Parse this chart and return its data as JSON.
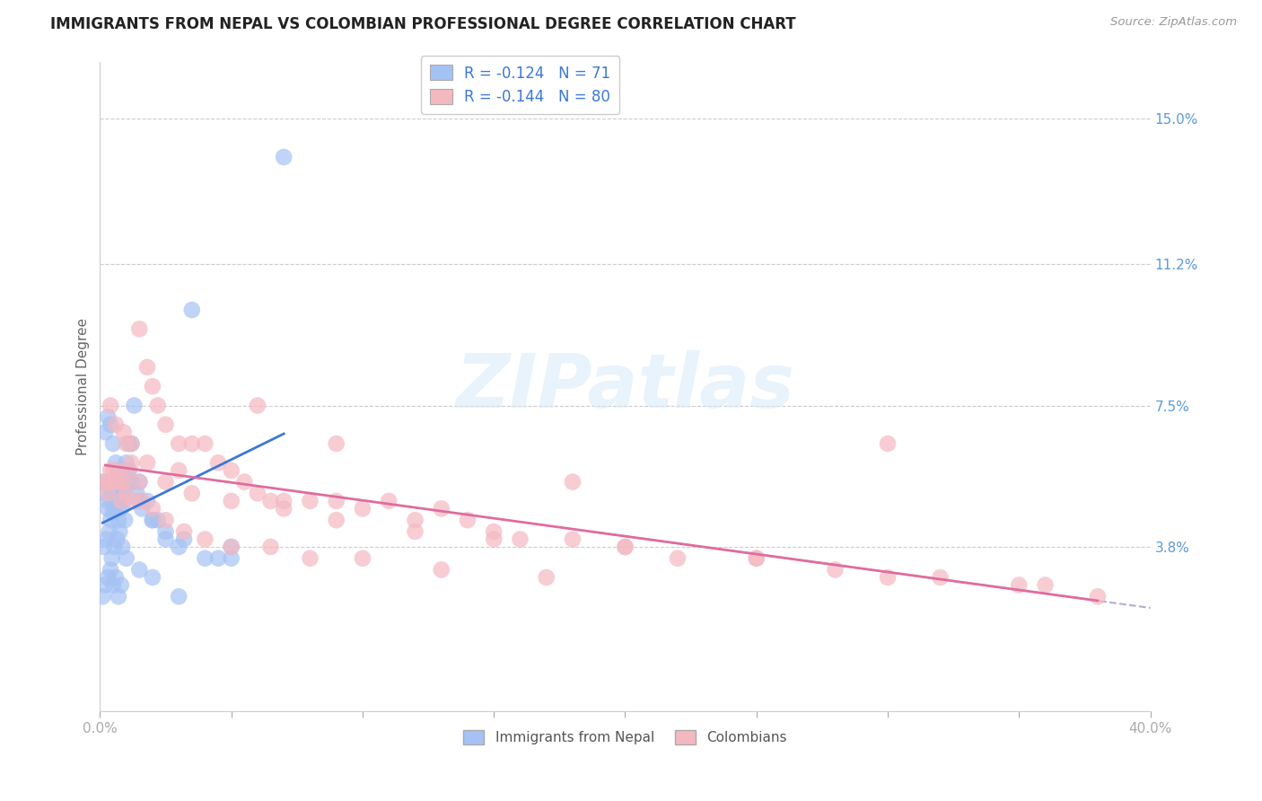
{
  "title": "IMMIGRANTS FROM NEPAL VS COLOMBIAN PROFESSIONAL DEGREE CORRELATION CHART",
  "source": "Source: ZipAtlas.com",
  "ylabel": "Professional Degree",
  "ytick_values": [
    3.8,
    7.5,
    11.2,
    15.0
  ],
  "xlim": [
    0.0,
    40.0
  ],
  "ylim": [
    -0.5,
    16.5
  ],
  "nepal_color": "#a4c2f4",
  "colombian_color": "#f4b8c1",
  "nepal_line_color": "#3c78d8",
  "colombian_line_color": "#e06c9f",
  "dashed_line_color": "#b0b0d0",
  "watermark_text": "ZIPatlas",
  "nepal_r": "-0.124",
  "nepal_n": "71",
  "colombian_r": "-0.144",
  "colombian_n": "80",
  "nepal_scatter_x": [
    0.1,
    0.2,
    0.3,
    0.3,
    0.4,
    0.4,
    0.5,
    0.5,
    0.5,
    0.6,
    0.6,
    0.7,
    0.7,
    0.8,
    0.8,
    0.9,
    1.0,
    1.0,
    1.1,
    1.2,
    1.3,
    1.5,
    1.5,
    1.8,
    2.0,
    2.2,
    2.5,
    3.0,
    4.0,
    5.0,
    0.15,
    0.25,
    0.35,
    0.45,
    0.55,
    0.65,
    0.75,
    0.85,
    0.95,
    1.1,
    0.2,
    0.3,
    0.4,
    0.5,
    0.6,
    0.7,
    0.8,
    0.9,
    1.0,
    1.2,
    1.4,
    1.6,
    2.0,
    2.5,
    3.2,
    4.5,
    0.1,
    0.2,
    0.3,
    0.4,
    0.5,
    0.6,
    0.7,
    0.8,
    1.0,
    1.5,
    2.0,
    3.0,
    5.0,
    7.0,
    3.5
  ],
  "nepal_scatter_y": [
    5.5,
    5.2,
    5.0,
    4.8,
    5.3,
    4.5,
    5.0,
    4.7,
    5.5,
    5.2,
    4.8,
    4.5,
    5.0,
    4.8,
    5.2,
    5.0,
    5.5,
    6.0,
    5.8,
    6.5,
    7.5,
    5.5,
    5.0,
    5.0,
    4.5,
    4.5,
    4.0,
    3.8,
    3.5,
    3.5,
    3.8,
    4.0,
    4.2,
    3.5,
    3.8,
    4.0,
    4.2,
    3.8,
    4.5,
    6.5,
    6.8,
    7.2,
    7.0,
    6.5,
    6.0,
    5.8,
    5.5,
    5.2,
    5.8,
    5.5,
    5.2,
    4.8,
    4.5,
    4.2,
    4.0,
    3.5,
    2.5,
    2.8,
    3.0,
    3.2,
    2.8,
    3.0,
    2.5,
    2.8,
    3.5,
    3.2,
    3.0,
    2.5,
    3.8,
    14.0,
    10.0
  ],
  "colombian_scatter_x": [
    0.2,
    0.3,
    0.4,
    0.5,
    0.6,
    0.7,
    0.8,
    0.9,
    1.0,
    1.1,
    1.2,
    1.5,
    1.5,
    1.8,
    2.0,
    2.2,
    2.5,
    3.0,
    3.5,
    4.0,
    4.5,
    5.0,
    5.5,
    6.0,
    6.5,
    7.0,
    8.0,
    9.0,
    10.0,
    11.0,
    12.0,
    13.0,
    14.0,
    15.0,
    16.0,
    18.0,
    20.0,
    22.0,
    25.0,
    28.0,
    30.0,
    32.0,
    35.0,
    38.0,
    0.3,
    0.5,
    0.8,
    1.0,
    1.3,
    1.6,
    2.0,
    2.5,
    3.2,
    4.0,
    5.0,
    6.5,
    8.0,
    10.0,
    13.0,
    17.0,
    0.4,
    0.6,
    0.9,
    1.2,
    1.8,
    2.5,
    3.5,
    5.0,
    7.0,
    9.0,
    12.0,
    15.0,
    20.0,
    25.0,
    30.0,
    36.0,
    3.0,
    6.0,
    9.0,
    18.0
  ],
  "colombian_scatter_y": [
    5.5,
    5.2,
    5.8,
    5.5,
    5.5,
    5.8,
    5.0,
    5.5,
    6.5,
    5.8,
    6.0,
    5.5,
    9.5,
    8.5,
    8.0,
    7.5,
    7.0,
    6.5,
    6.5,
    6.5,
    6.0,
    5.8,
    5.5,
    5.2,
    5.0,
    5.0,
    5.0,
    5.0,
    4.8,
    5.0,
    4.5,
    4.8,
    4.5,
    4.2,
    4.0,
    4.0,
    3.8,
    3.5,
    3.5,
    3.2,
    6.5,
    3.0,
    2.8,
    2.5,
    5.5,
    5.8,
    5.5,
    5.2,
    5.0,
    5.0,
    4.8,
    4.5,
    4.2,
    4.0,
    3.8,
    3.8,
    3.5,
    3.5,
    3.2,
    3.0,
    7.5,
    7.0,
    6.8,
    6.5,
    6.0,
    5.5,
    5.2,
    5.0,
    4.8,
    4.5,
    4.2,
    4.0,
    3.8,
    3.5,
    3.0,
    2.8,
    5.8,
    7.5,
    6.5,
    5.5
  ]
}
